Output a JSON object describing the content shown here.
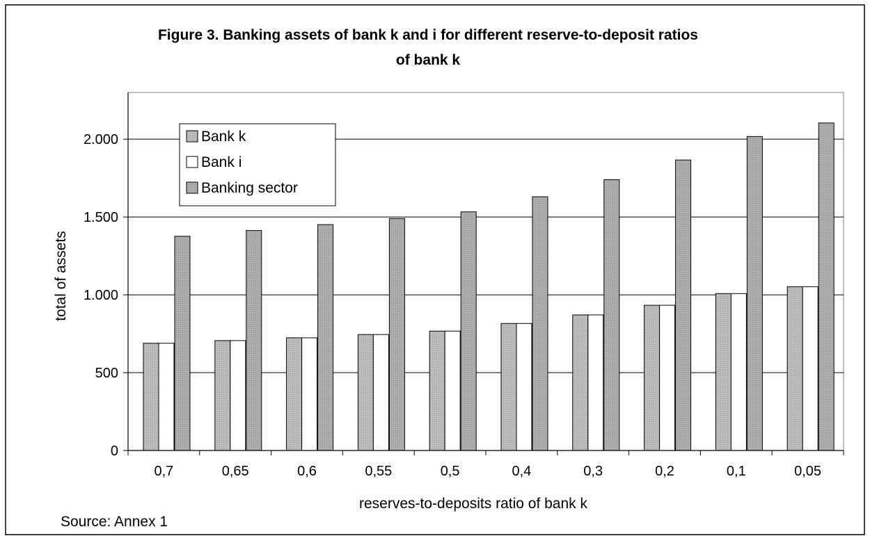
{
  "chart_data": {
    "type": "bar",
    "title_line1": "Figure 3. Banking assets of bank k and i for different reserve-to-deposit ratios",
    "title_line2": "of bank k",
    "xlabel": "reserves-to-deposits ratio of bank k",
    "ylabel": "total of assets",
    "categories": [
      "0,7",
      "0,65",
      "0,6",
      "0,55",
      "0,5",
      "0,4",
      "0,3",
      "0,2",
      "0,1",
      "0,05"
    ],
    "series": [
      {
        "name": "Bank k",
        "values": [
          689,
          706,
          724,
          745,
          767,
          816,
          871,
          933,
          1008,
          1052
        ],
        "color": "#b8b8b8"
      },
      {
        "name": "Bank i",
        "values": [
          689,
          706,
          724,
          745,
          767,
          816,
          871,
          933,
          1008,
          1052
        ],
        "color": "#ffffff"
      },
      {
        "name": "Banking sector",
        "values": [
          1376,
          1413,
          1451,
          1490,
          1533,
          1630,
          1740,
          1866,
          2017,
          2104
        ],
        "color": "#a8a8a8"
      }
    ],
    "yticks": [
      {
        "value": 0,
        "label": "0"
      },
      {
        "value": 500,
        "label": "500"
      },
      {
        "value": 1000,
        "label": "1.000"
      },
      {
        "value": 1500,
        "label": "1.500"
      },
      {
        "value": 2000,
        "label": "2.000"
      }
    ],
    "ylim": [
      0,
      2300
    ],
    "grid": true,
    "legend_position": "top-left"
  },
  "source_note": "Source: Annex 1"
}
